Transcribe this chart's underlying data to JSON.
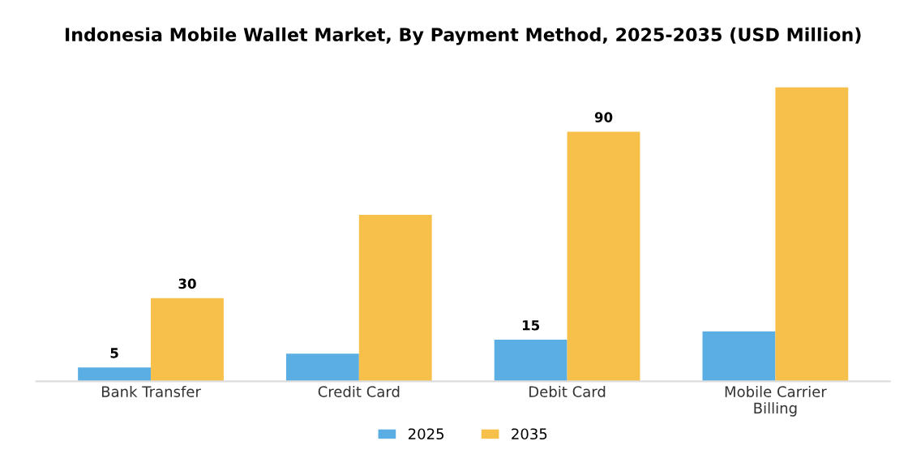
{
  "chart_data": {
    "type": "bar",
    "title": "Indonesia Mobile Wallet Market, By Payment Method, 2025-2035 (USD Million)",
    "categories": [
      "Bank Transfer",
      "Credit Card",
      "Debit Card",
      "Mobile Carrier\nBilling"
    ],
    "series": [
      {
        "name": "2025",
        "color": "#5aaee3",
        "values": [
          5,
          10,
          15,
          18
        ],
        "value_labels": [
          "5",
          null,
          "15",
          null
        ]
      },
      {
        "name": "2035",
        "color": "#f7c04a",
        "values": [
          30,
          60,
          90,
          106
        ],
        "value_labels": [
          "30",
          null,
          "90",
          null
        ]
      }
    ],
    "legend": "bottom",
    "grid": false,
    "tick_labels": "x"
  }
}
